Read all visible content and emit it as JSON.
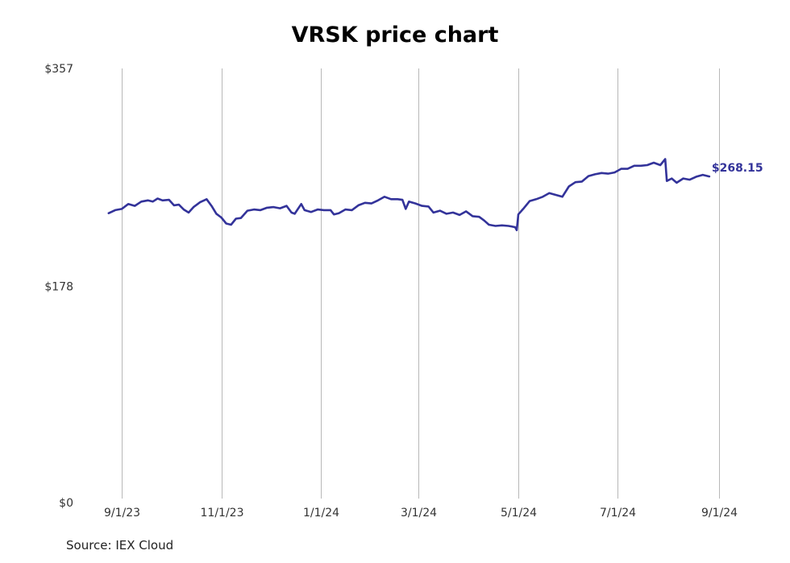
{
  "chart_data": {
    "type": "line",
    "title": "VRSK price chart",
    "source": "Source: IEX Cloud",
    "xlabel": "",
    "ylabel": "",
    "ylim": [
      0,
      357
    ],
    "y_ticks": [
      {
        "value": 0,
        "label": "$0"
      },
      {
        "value": 178,
        "label": "$178"
      },
      {
        "value": 357,
        "label": "$357"
      }
    ],
    "x_range": [
      "2023-08-24",
      "2024-09-01"
    ],
    "x_ticks": [
      {
        "date": "2023-09-01",
        "label": "9/1/23"
      },
      {
        "date": "2023-11-01",
        "label": "11/1/23"
      },
      {
        "date": "2024-01-01",
        "label": "1/1/24"
      },
      {
        "date": "2024-03-01",
        "label": "3/1/24"
      },
      {
        "date": "2024-05-01",
        "label": "5/1/24"
      },
      {
        "date": "2024-07-01",
        "label": "7/1/24"
      },
      {
        "date": "2024-09-01",
        "label": "9/1/24"
      }
    ],
    "grid": {
      "vertical": true,
      "horizontal": false
    },
    "line_color": "#33339a",
    "last_value_label": "$268.15",
    "series": [
      {
        "name": "",
        "points": [
          [
            "2023-08-24",
            238.0
          ],
          [
            "2023-08-28",
            240.5
          ],
          [
            "2023-09-01",
            241.5
          ],
          [
            "2023-09-05",
            245.5
          ],
          [
            "2023-09-09",
            244.0
          ],
          [
            "2023-09-13",
            247.5
          ],
          [
            "2023-09-17",
            248.5
          ],
          [
            "2023-09-20",
            247.5
          ],
          [
            "2023-09-23",
            250.0
          ],
          [
            "2023-09-26",
            248.5
          ],
          [
            "2023-09-30",
            249.0
          ],
          [
            "2023-10-03",
            244.5
          ],
          [
            "2023-10-06",
            245.0
          ],
          [
            "2023-10-09",
            241.0
          ],
          [
            "2023-10-12",
            238.5
          ],
          [
            "2023-10-15",
            243.0
          ],
          [
            "2023-10-19",
            247.0
          ],
          [
            "2023-10-23",
            249.5
          ],
          [
            "2023-10-26",
            244.0
          ],
          [
            "2023-10-29",
            237.5
          ],
          [
            "2023-11-01",
            234.5
          ],
          [
            "2023-11-04",
            229.5
          ],
          [
            "2023-11-07",
            228.5
          ],
          [
            "2023-11-10",
            233.5
          ],
          [
            "2023-11-13",
            234.0
          ],
          [
            "2023-11-17",
            240.0
          ],
          [
            "2023-11-21",
            241.0
          ],
          [
            "2023-11-25",
            240.5
          ],
          [
            "2023-11-29",
            242.5
          ],
          [
            "2023-12-03",
            243.0
          ],
          [
            "2023-12-07",
            242.0
          ],
          [
            "2023-12-11",
            244.0
          ],
          [
            "2023-12-14",
            238.5
          ],
          [
            "2023-12-16",
            237.5
          ],
          [
            "2023-12-20",
            245.5
          ],
          [
            "2023-12-22",
            240.5
          ],
          [
            "2023-12-26",
            239.0
          ],
          [
            "2023-12-30",
            241.0
          ],
          [
            "2024-01-03",
            240.5
          ],
          [
            "2024-01-07",
            240.5
          ],
          [
            "2024-01-09",
            237.0
          ],
          [
            "2024-01-12",
            238.0
          ],
          [
            "2024-01-16",
            241.0
          ],
          [
            "2024-01-20",
            240.5
          ],
          [
            "2024-01-24",
            244.5
          ],
          [
            "2024-01-28",
            246.5
          ],
          [
            "2024-02-01",
            246.0
          ],
          [
            "2024-02-05",
            248.5
          ],
          [
            "2024-02-09",
            251.5
          ],
          [
            "2024-02-13",
            249.5
          ],
          [
            "2024-02-17",
            249.5
          ],
          [
            "2024-02-20",
            249.0
          ],
          [
            "2024-02-22",
            241.5
          ],
          [
            "2024-02-24",
            247.5
          ],
          [
            "2024-02-28",
            246.0
          ],
          [
            "2024-03-03",
            244.0
          ],
          [
            "2024-03-07",
            243.5
          ],
          [
            "2024-03-10",
            238.5
          ],
          [
            "2024-03-14",
            240.0
          ],
          [
            "2024-03-18",
            237.5
          ],
          [
            "2024-03-22",
            238.5
          ],
          [
            "2024-03-26",
            236.5
          ],
          [
            "2024-03-30",
            239.5
          ],
          [
            "2024-04-03",
            235.5
          ],
          [
            "2024-04-07",
            235.0
          ],
          [
            "2024-04-10",
            232.0
          ],
          [
            "2024-04-13",
            228.5
          ],
          [
            "2024-04-17",
            227.5
          ],
          [
            "2024-04-21",
            228.0
          ],
          [
            "2024-04-25",
            227.5
          ],
          [
            "2024-04-29",
            226.5
          ],
          [
            "2024-04-30",
            224.0
          ],
          [
            "2024-05-01",
            237.0
          ],
          [
            "2024-05-04",
            241.5
          ],
          [
            "2024-05-08",
            248.0
          ],
          [
            "2024-05-12",
            249.5
          ],
          [
            "2024-05-16",
            251.5
          ],
          [
            "2024-05-20",
            254.5
          ],
          [
            "2024-05-24",
            253.0
          ],
          [
            "2024-05-28",
            251.5
          ],
          [
            "2024-06-01",
            260.0
          ],
          [
            "2024-06-05",
            263.5
          ],
          [
            "2024-06-09",
            264.0
          ],
          [
            "2024-06-13",
            268.5
          ],
          [
            "2024-06-17",
            270.0
          ],
          [
            "2024-06-21",
            271.0
          ],
          [
            "2024-06-25",
            270.5
          ],
          [
            "2024-06-29",
            271.5
          ],
          [
            "2024-07-03",
            274.5
          ],
          [
            "2024-07-07",
            274.5
          ],
          [
            "2024-07-11",
            277.0
          ],
          [
            "2024-07-15",
            277.0
          ],
          [
            "2024-07-19",
            277.5
          ],
          [
            "2024-07-23",
            279.5
          ],
          [
            "2024-07-27",
            277.5
          ],
          [
            "2024-07-30",
            282.5
          ],
          [
            "2024-07-31",
            264.5
          ],
          [
            "2024-08-03",
            266.5
          ],
          [
            "2024-08-06",
            263.0
          ],
          [
            "2024-08-10",
            266.5
          ],
          [
            "2024-08-14",
            265.5
          ],
          [
            "2024-08-18",
            268.0
          ],
          [
            "2024-08-22",
            269.5
          ],
          [
            "2024-08-26",
            268.15
          ]
        ]
      }
    ]
  }
}
